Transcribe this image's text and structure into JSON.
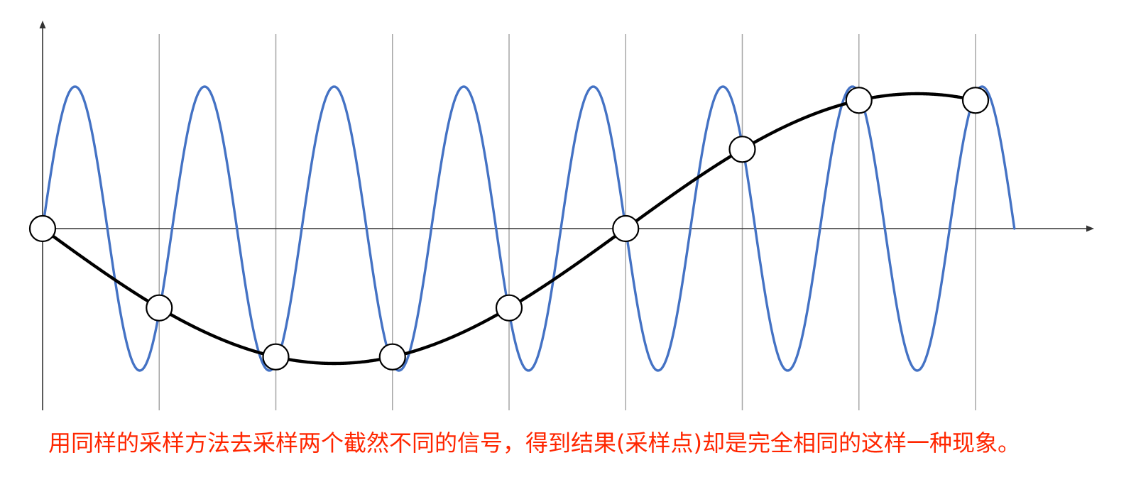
{
  "caption": "用同样的采样方法去采样两个截然不同的信号，得到结果(采样点)却是完全相同的这样一种现象。",
  "colors": {
    "high_frequency_signal": "#4472C4",
    "aliased_signal": "#000000",
    "sample_point_fill": "#FFFFFF",
    "sample_point_stroke": "#000000",
    "gridline": "#A6A6A6",
    "axis": "#333333",
    "caption": "#FF2600"
  }
}
